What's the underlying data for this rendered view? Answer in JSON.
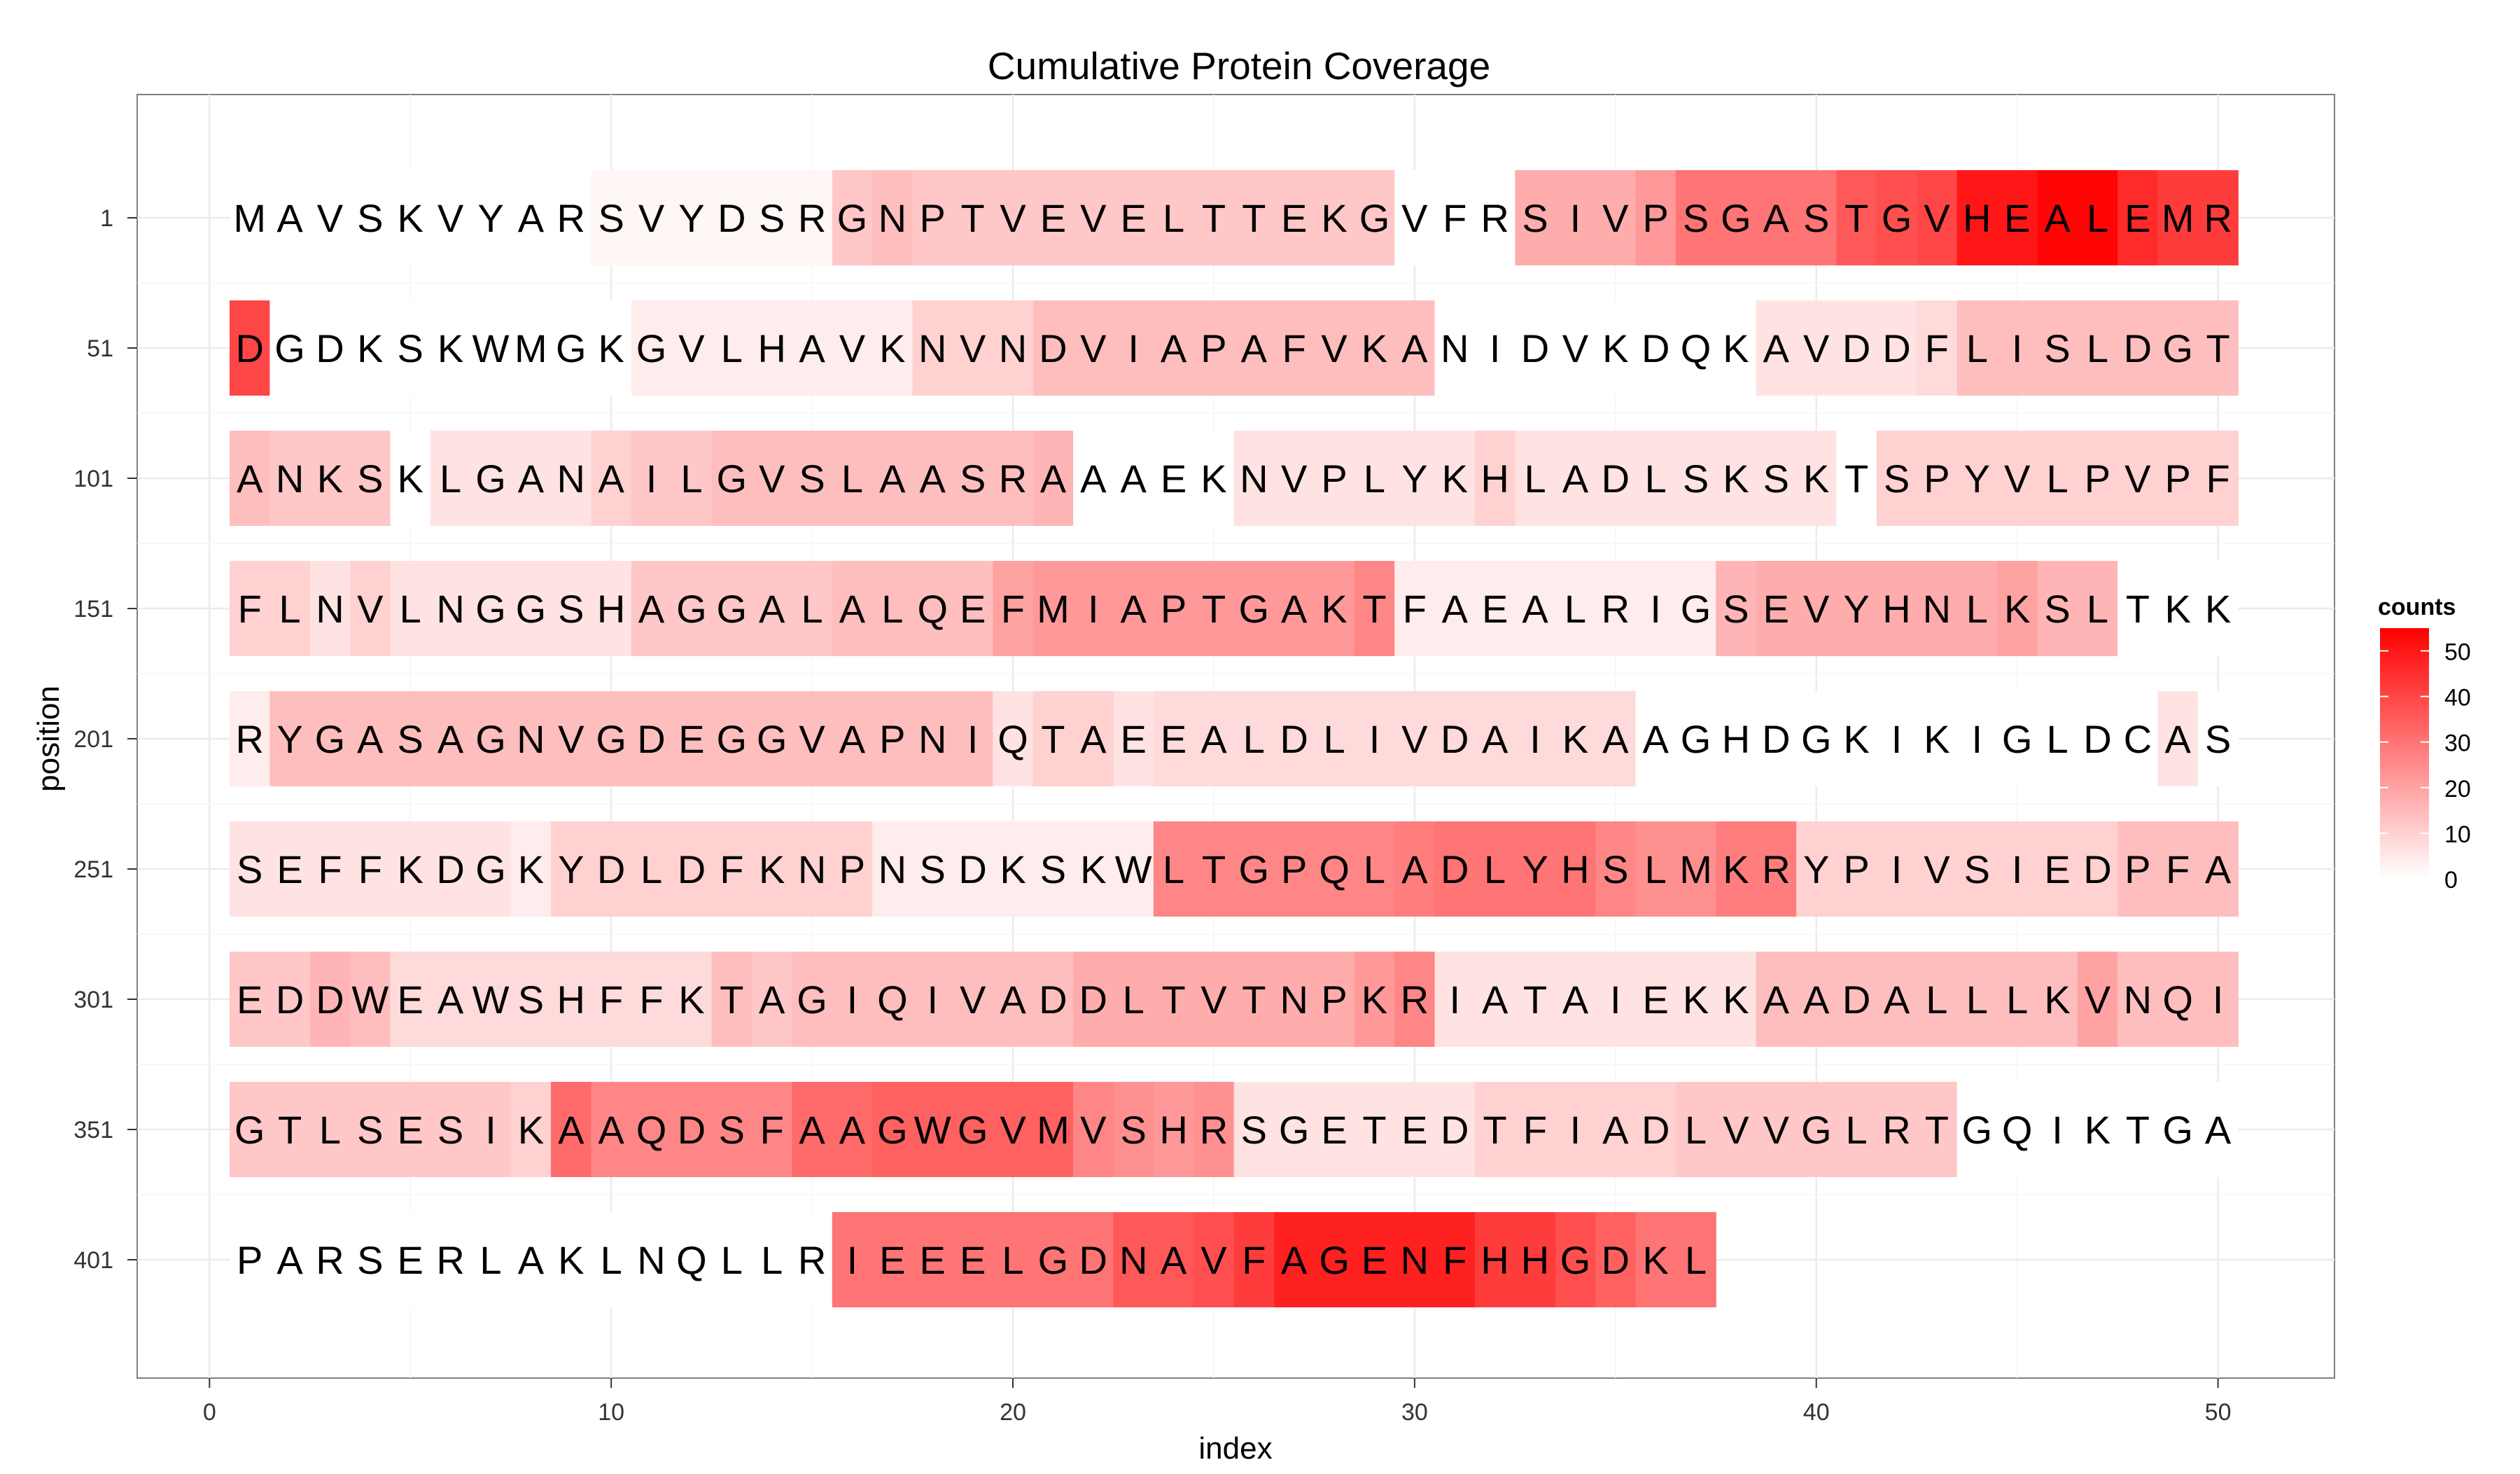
{
  "chart_data": {
    "type": "heatmap",
    "title": "Cumulative Protein Coverage",
    "xlabel": "index",
    "ylabel": "position",
    "xlim": [
      -1.8,
      52.9
    ],
    "x_ticks": [
      0,
      10,
      20,
      30,
      40,
      50
    ],
    "row_labels": [
      "1",
      "51",
      "101",
      "151",
      "201",
      "251",
      "301",
      "351",
      "401"
    ],
    "grid": true,
    "legend": {
      "title": "counts",
      "ticks": [
        0,
        10,
        20,
        30,
        40,
        50
      ],
      "min": 0,
      "max": 55,
      "low_color": "#ffffff",
      "high_color": "#ff0000",
      "placement": "right"
    },
    "rows": [
      {
        "label": "1",
        "sequence": "MAVSKVYARSVYDSRGNPTVEVELTTEKGVFRSIVPSGASTGVHEALEMR",
        "counts": [
          0,
          0,
          0,
          0,
          0,
          0,
          0,
          0,
          0,
          2,
          2,
          2,
          2,
          2,
          2,
          12,
          14,
          12,
          12,
          12,
          12,
          12,
          12,
          12,
          12,
          12,
          12,
          12,
          12,
          0,
          0,
          0,
          18,
          18,
          18,
          22,
          30,
          30,
          30,
          30,
          36,
          38,
          40,
          50,
          50,
          54,
          54,
          46,
          42,
          42
        ]
      },
      {
        "label": "51",
        "sequence": "DGDKSKWMGKGVLHAVKNVNDVIAPAFVKANIDVKDQKAVDDFLISLDGT",
        "counts": [
          40,
          0,
          0,
          0,
          0,
          0,
          0,
          0,
          0,
          0,
          4,
          4,
          4,
          4,
          4,
          4,
          4,
          10,
          10,
          10,
          14,
          14,
          14,
          14,
          14,
          14,
          14,
          14,
          14,
          14,
          0,
          0,
          0,
          0,
          0,
          0,
          0,
          0,
          6,
          6,
          6,
          6,
          8,
          14,
          14,
          14,
          14,
          14,
          14,
          14
        ]
      },
      {
        "label": "101",
        "sequence": "ANKSKLGANAILGVSLAASRAAAEKNVPLYKHLADLSKSKTSPYVLPVPF",
        "counts": [
          14,
          12,
          12,
          12,
          0,
          6,
          6,
          6,
          6,
          10,
          12,
          12,
          14,
          14,
          14,
          14,
          14,
          14,
          14,
          14,
          16,
          0,
          0,
          0,
          0,
          6,
          6,
          6,
          6,
          6,
          6,
          10,
          6,
          6,
          6,
          6,
          6,
          6,
          6,
          6,
          0,
          10,
          10,
          10,
          10,
          10,
          10,
          10,
          10,
          10
        ]
      },
      {
        "label": "151",
        "sequence": "FLNVLNGGSHAGGALALQEFMIAPTGAKTFAEALRIGSEVYHNLKSLTKK",
        "counts": [
          10,
          10,
          6,
          10,
          6,
          6,
          6,
          6,
          6,
          6,
          12,
          12,
          12,
          12,
          12,
          14,
          14,
          14,
          14,
          20,
          22,
          22,
          22,
          22,
          22,
          22,
          22,
          22,
          26,
          4,
          4,
          4,
          4,
          4,
          4,
          4,
          4,
          16,
          18,
          18,
          18,
          18,
          18,
          18,
          20,
          16,
          16,
          0,
          0,
          0
        ]
      },
      {
        "label": "201",
        "sequence": "RYGASAGNVGDEGGVAPNIQTAEEALDLIVDAIKAAGHDGKIKIGLDCAS",
        "counts": [
          4,
          14,
          14,
          14,
          14,
          14,
          14,
          14,
          14,
          14,
          14,
          14,
          14,
          14,
          14,
          14,
          14,
          14,
          14,
          6,
          10,
          10,
          6,
          8,
          8,
          8,
          8,
          8,
          8,
          8,
          8,
          8,
          8,
          8,
          8,
          0,
          0,
          0,
          0,
          0,
          0,
          0,
          0,
          0,
          0,
          0,
          0,
          0,
          6,
          0
        ]
      },
      {
        "label": "251",
        "sequence": "SEFFKDGKYDLDFKNPNSDKSKWLTGPQLADLYHSLMKRYPIVSIEDPFA",
        "counts": [
          6,
          6,
          6,
          6,
          6,
          6,
          6,
          4,
          10,
          10,
          10,
          10,
          10,
          10,
          10,
          10,
          4,
          4,
          4,
          4,
          4,
          4,
          4,
          26,
          26,
          26,
          26,
          26,
          26,
          28,
          30,
          30,
          30,
          30,
          26,
          24,
          24,
          28,
          28,
          10,
          10,
          10,
          10,
          10,
          10,
          10,
          10,
          14,
          14,
          14
        ]
      },
      {
        "label": "301",
        "sequence": "EDDWEAWSHFFKTAGIQIVADDLTVTNPKRIATAIEKKAADALLLKVNQI",
        "counts": [
          12,
          12,
          16,
          14,
          8,
          8,
          8,
          8,
          8,
          8,
          8,
          8,
          14,
          12,
          14,
          14,
          14,
          14,
          14,
          14,
          14,
          18,
          18,
          18,
          18,
          18,
          18,
          18,
          22,
          26,
          6,
          6,
          6,
          6,
          6,
          6,
          6,
          6,
          14,
          14,
          14,
          14,
          14,
          14,
          14,
          14,
          20,
          14,
          14,
          14
        ]
      },
      {
        "label": "351",
        "sequence": "GTLSESIKAAQDSFAAGWGVMVSHRSGETEDTFIADLVVGLRTGQIKTGA",
        "counts": [
          12,
          12,
          12,
          12,
          12,
          12,
          12,
          10,
          32,
          26,
          26,
          26,
          26,
          26,
          32,
          32,
          34,
          34,
          34,
          34,
          34,
          26,
          24,
          22,
          24,
          6,
          6,
          6,
          6,
          6,
          6,
          10,
          10,
          10,
          10,
          10,
          12,
          12,
          12,
          12,
          12,
          12,
          12,
          0,
          0,
          0,
          0,
          0,
          0,
          0
        ]
      },
      {
        "label": "401",
        "sequence": "PARSERLAKLNQLLRIEEELGDNAVFAGENFHHGDKL",
        "counts": [
          0,
          0,
          0,
          0,
          0,
          0,
          0,
          0,
          0,
          0,
          0,
          0,
          0,
          0,
          0,
          30,
          30,
          30,
          30,
          30,
          30,
          30,
          36,
          36,
          38,
          42,
          48,
          48,
          48,
          48,
          48,
          42,
          42,
          38,
          34,
          30,
          30
        ]
      }
    ]
  }
}
